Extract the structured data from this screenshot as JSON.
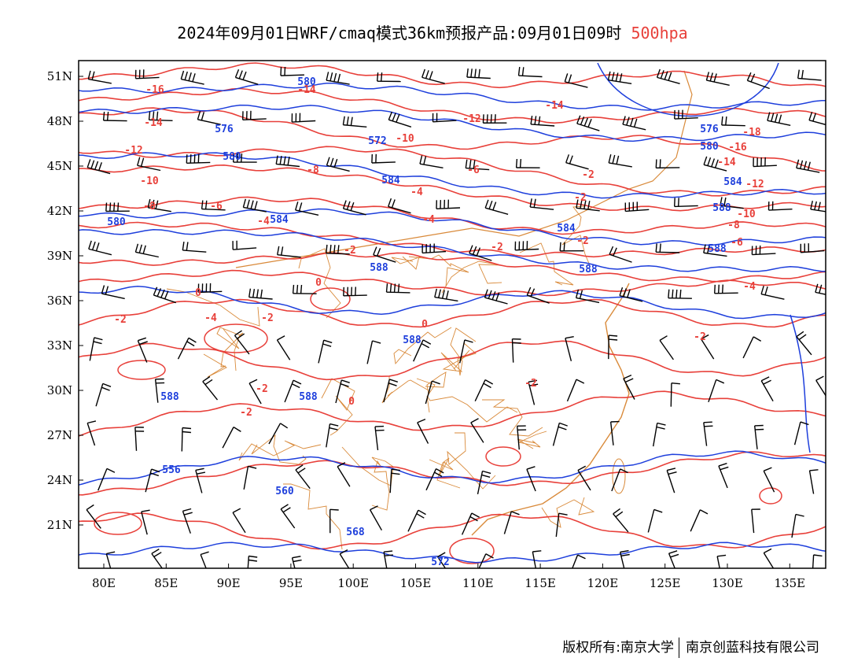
{
  "title": {
    "main": "2024年09月01日WRF/cmaq模式36km预报产品:09月01日09时",
    "level": "500hpa",
    "level_color": "#e8403a"
  },
  "map": {
    "lon_labels": [
      "80E",
      "85E",
      "90E",
      "95E",
      "100E",
      "105E",
      "110E",
      "115E",
      "120E",
      "125E",
      "130E",
      "135E"
    ],
    "lat_labels": [
      "51N",
      "48N",
      "45N",
      "42N",
      "39N",
      "36N",
      "33N",
      "30N",
      "27N",
      "24N",
      "21N"
    ],
    "colors": {
      "height_contour": "#1e3fdc",
      "temperature_contour": "#e8403a",
      "boundaries": "#d98a3a",
      "wind_barbs": "#000000"
    },
    "height_labels": [
      "580",
      "576",
      "572",
      "580",
      "584",
      "584",
      "580",
      "584",
      "588",
      "588",
      "588",
      "588",
      "588",
      "588",
      "556",
      "560",
      "568",
      "572",
      "576",
      "580",
      "584",
      "588"
    ],
    "temperature_labels": [
      "-16",
      "-14",
      "-14",
      "-12",
      "-10",
      "-8",
      "-6",
      "-4",
      "-4",
      "-2",
      "-2",
      "0",
      "0",
      "-2",
      "-4",
      "-2",
      "0",
      "-14",
      "-12",
      "-10",
      "-8",
      "-6",
      "-4",
      "-2",
      "-2",
      "-2",
      "-2",
      "-18",
      "-16",
      "-14",
      "-12",
      "-10",
      "-8",
      "-6",
      "-4",
      "-2",
      "-2",
      "-2",
      "0"
    ]
  },
  "footer": {
    "left": "版权所有:南京大学",
    "right": "南京创蓝科技有限公司"
  }
}
